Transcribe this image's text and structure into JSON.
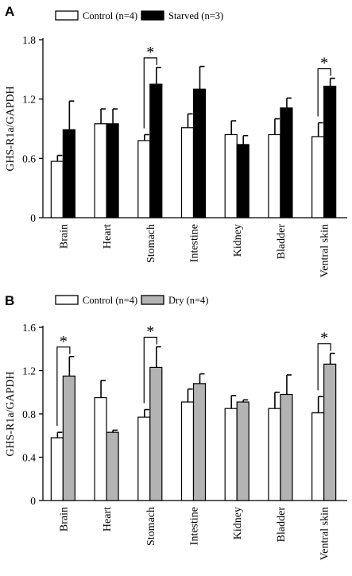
{
  "chart_data": [
    {
      "panel_label": "A",
      "type": "bar",
      "ylabel": "GHS-R1a/GAPDH",
      "ylim": [
        0,
        1.8
      ],
      "yticks": [
        0,
        0.6,
        1.2,
        1.8
      ],
      "categories": [
        "Brain",
        "Heart",
        "Stomach",
        "Intestine",
        "Kidney",
        "Bladder",
        "Ventral skin"
      ],
      "series": [
        {
          "name": "Control (n=4)",
          "color": "#ffffff",
          "values": [
            0.57,
            0.95,
            0.78,
            0.91,
            0.84,
            0.84,
            0.82
          ],
          "errors": [
            0.06,
            0.15,
            0.06,
            0.14,
            0.14,
            0.16,
            0.14
          ]
        },
        {
          "name": "Starved (n=3)",
          "color": "#000000",
          "values": [
            0.89,
            0.95,
            1.35,
            1.3,
            0.74,
            1.11,
            1.33
          ],
          "errors": [
            0.29,
            0.15,
            0.17,
            0.23,
            0.09,
            0.1,
            0.08
          ]
        }
      ],
      "significance": [
        {
          "category": "Stomach",
          "label": "*"
        },
        {
          "category": "Ventral skin",
          "label": "*"
        }
      ]
    },
    {
      "panel_label": "B",
      "type": "bar",
      "ylabel": "GHS-R1a/GAPDH",
      "ylim": [
        0,
        1.6
      ],
      "yticks": [
        0,
        0.4,
        0.8,
        1.2,
        1.6
      ],
      "categories": [
        "Brain",
        "Heart",
        "Stomach",
        "Intestine",
        "Kidney",
        "Bladder",
        "Ventral skin"
      ],
      "series": [
        {
          "name": "Control (n=4)",
          "color": "#ffffff",
          "values": [
            0.58,
            0.95,
            0.77,
            0.91,
            0.85,
            0.85,
            0.81
          ],
          "errors": [
            0.05,
            0.16,
            0.07,
            0.12,
            0.12,
            0.15,
            0.15
          ]
        },
        {
          "name": "Dry (n=4)",
          "color": "#b3b3b3",
          "values": [
            1.15,
            0.63,
            1.23,
            1.08,
            0.91,
            0.98,
            1.26
          ],
          "errors": [
            0.18,
            0.02,
            0.19,
            0.09,
            0.02,
            0.18,
            0.1
          ]
        }
      ],
      "significance": [
        {
          "category": "Brain",
          "label": "*"
        },
        {
          "category": "Stomach",
          "label": "*"
        },
        {
          "category": "Ventral skin",
          "label": "*"
        }
      ]
    }
  ]
}
